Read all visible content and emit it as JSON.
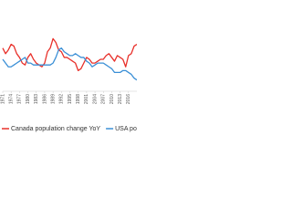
{
  "chart_data": {
    "type": "line",
    "x": [
      1971,
      1972,
      1973,
      1974,
      1975,
      1976,
      1977,
      1978,
      1979,
      1980,
      1981,
      1982,
      1983,
      1984,
      1985,
      1986,
      1987,
      1988,
      1989,
      1990,
      1991,
      1992,
      1993,
      1994,
      1995,
      1996,
      1997,
      1998,
      1999,
      2000,
      2001,
      2002,
      2003,
      2004,
      2005,
      2006,
      2007,
      2008,
      2009,
      2010,
      2011,
      2012,
      2013,
      2014,
      2015,
      2016,
      2017,
      2018,
      2019
    ],
    "series": [
      {
        "name": "Canada population change YoY",
        "color": "#e8302a",
        "values": [
          1.35,
          1.2,
          1.3,
          1.45,
          1.4,
          1.2,
          1.1,
          0.95,
          0.9,
          1.1,
          1.2,
          1.05,
          0.95,
          0.9,
          0.85,
          0.95,
          1.25,
          1.35,
          1.6,
          1.5,
          1.3,
          1.25,
          1.1,
          1.1,
          1.05,
          1.0,
          0.95,
          0.75,
          0.8,
          0.95,
          1.1,
          1.05,
          0.95,
          0.95,
          1.0,
          1.05,
          1.05,
          1.15,
          1.2,
          1.1,
          1.0,
          1.15,
          1.1,
          1.05,
          0.85,
          1.15,
          1.2,
          1.4,
          1.45
        ]
      },
      {
        "name": "USA population change YoY",
        "color": "#3a8fd6",
        "values": [
          1.05,
          0.95,
          0.85,
          0.85,
          0.9,
          0.95,
          1.0,
          1.05,
          1.1,
          0.95,
          0.95,
          0.9,
          0.9,
          0.9,
          0.9,
          0.9,
          0.9,
          0.9,
          0.95,
          1.1,
          1.3,
          1.35,
          1.25,
          1.2,
          1.15,
          1.15,
          1.2,
          1.15,
          1.1,
          1.1,
          1.0,
          0.95,
          0.85,
          0.9,
          0.95,
          0.95,
          0.95,
          0.9,
          0.85,
          0.8,
          0.7,
          0.7,
          0.7,
          0.75,
          0.75,
          0.7,
          0.65,
          0.55,
          0.5
        ]
      }
    ],
    "xlim": [
      1971,
      2019
    ],
    "xticks": [
      1971,
      1974,
      1977,
      1980,
      1983,
      1986,
      1989,
      1992,
      1995,
      1998,
      2001,
      2004,
      2007,
      2010,
      2013,
      2016
    ],
    "ylim": [
      0.2,
      1.9
    ],
    "legend": "bottom"
  }
}
